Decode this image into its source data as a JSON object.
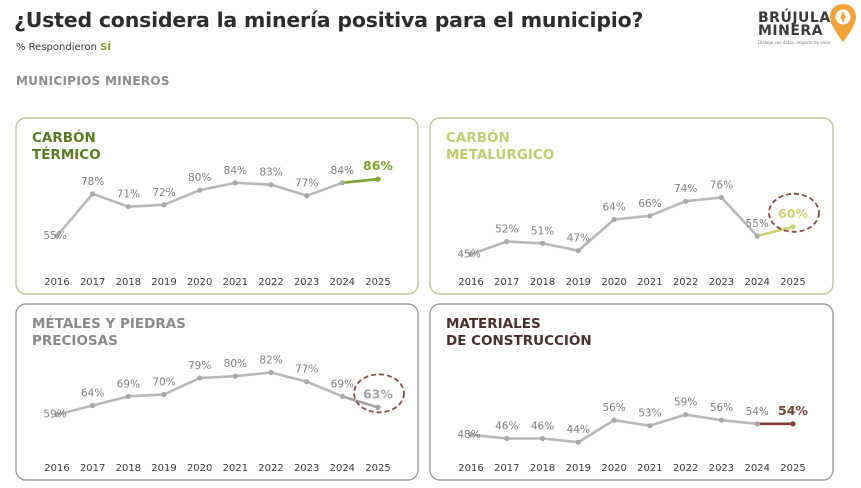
{
  "header": {
    "title": "¿Usted considera la minería positiva para el municipio?",
    "subtitle_prefix": "% Respondieron",
    "subtitle_highlight": "SÍ",
    "section": "MUNICIPIOS MINEROS"
  },
  "logo": {
    "word1": "BRÚJULA",
    "word2": "MINERA",
    "tagline": "Diálogo con datos, impacto de valor"
  },
  "colors": {
    "line": "#b8b8b8",
    "point": "#a8a8a8",
    "label": "#7f7f7f",
    "axis": "#3a3a3a",
    "circle": "#8b4a48",
    "border_green": "#b6c99a",
    "border_gray": "#9c9c9c"
  },
  "chart_data": [
    {
      "type": "line",
      "title_lines": [
        "CARBÓN",
        "TÉRMICO"
      ],
      "title_color": "#5d7a23",
      "accent": "#7ca32e",
      "categories": [
        "2016",
        "2017",
        "2018",
        "2019",
        "2020",
        "2021",
        "2022",
        "2023",
        "2024",
        "2025"
      ],
      "values": [
        55,
        78,
        71,
        72,
        80,
        84,
        83,
        77,
        84,
        86
      ],
      "labels": [
        "55%",
        "78%",
        "71%",
        "72%",
        "80%",
        "84%",
        "83%",
        "77%",
        "84%",
        "86%"
      ],
      "highlight_circle": false
    },
    {
      "type": "line",
      "title_lines": [
        "CARBÓN",
        "METALÚRGICO"
      ],
      "title_color": "#c2cc72",
      "accent": "#cdd36f",
      "categories": [
        "2016",
        "2017",
        "2018",
        "2019",
        "2020",
        "2021",
        "2022",
        "2023",
        "2024",
        "2025"
      ],
      "values": [
        45,
        52,
        51,
        47,
        64,
        66,
        74,
        76,
        55,
        60
      ],
      "labels": [
        "45%",
        "52%",
        "51%",
        "47%",
        "64%",
        "66%",
        "74%",
        "76%",
        "55%",
        "60%"
      ],
      "highlight_circle": true
    },
    {
      "type": "line",
      "title_lines": [
        "MÉTALES Y PIEDRAS",
        "PRECIOSAS"
      ],
      "title_color": "#8a8a8a",
      "accent": "#a3a3a3",
      "categories": [
        "2016",
        "2017",
        "2018",
        "2019",
        "2020",
        "2021",
        "2022",
        "2023",
        "2024",
        "2025"
      ],
      "values": [
        59,
        64,
        69,
        70,
        79,
        80,
        82,
        77,
        69,
        63
      ],
      "labels": [
        "59%",
        "64%",
        "69%",
        "70%",
        "79%",
        "80%",
        "82%",
        "77%",
        "69%",
        "63%"
      ],
      "highlight_circle": true
    },
    {
      "type": "line",
      "title_lines": [
        "MATERIALES",
        "DE CONSTRUCCIÓN"
      ],
      "title_color": "#4a302c",
      "accent": "#7a4038",
      "categories": [
        "2016",
        "2017",
        "2018",
        "2019",
        "2020",
        "2021",
        "2022",
        "2023",
        "2024",
        "2025"
      ],
      "values": [
        48,
        46,
        46,
        44,
        56,
        53,
        59,
        56,
        54,
        54
      ],
      "labels": [
        "48%",
        "46%",
        "46%",
        "44%",
        "56%",
        "53%",
        "59%",
        "56%",
        "54%",
        "54%"
      ],
      "highlight_circle": false
    }
  ]
}
